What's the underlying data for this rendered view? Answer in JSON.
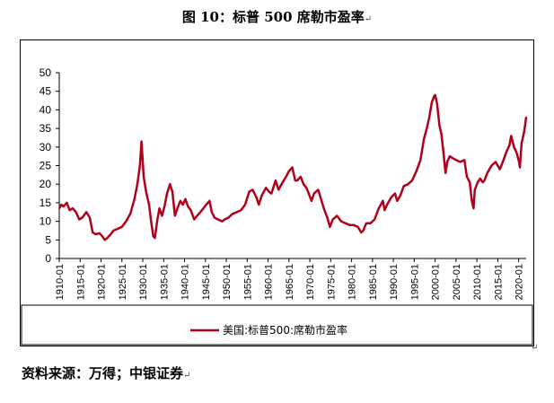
{
  "title": "图 10：标普 500 席勒市盈率",
  "source": "资料来源：万得；中银证券",
  "paragraph_mark": "↵",
  "chart_data": {
    "type": "line",
    "title": "图 10：标普 500 席勒市盈率",
    "xlabel": "",
    "ylabel": "",
    "ylim": [
      0,
      50
    ],
    "yticks": [
      0,
      5,
      10,
      15,
      20,
      25,
      30,
      35,
      40,
      45,
      50
    ],
    "xticks": [
      "1910-01",
      "1915-01",
      "1920-01",
      "1925-01",
      "1930-01",
      "1935-01",
      "1940-01",
      "1945-01",
      "1950-01",
      "1955-01",
      "1960-01",
      "1965-01",
      "1970-01",
      "1975-01",
      "1980-01",
      "1985-01",
      "1990-01",
      "1995-01",
      "2000-01",
      "2005-01",
      "2010-01",
      "2015-01",
      "2020-01"
    ],
    "xlim": [
      1910.0,
      2021.8
    ],
    "grid": false,
    "legend_placement": "bottom",
    "color": "#b0001a",
    "series": [
      {
        "name": "美国:标普500:席勒市盈率",
        "x": [
          1910.0,
          1910.5,
          1911.0,
          1911.8,
          1912.5,
          1913.2,
          1914.0,
          1914.8,
          1915.5,
          1916.5,
          1917.3,
          1918.0,
          1918.8,
          1919.6,
          1920.3,
          1920.9,
          1921.5,
          1922.3,
          1923.0,
          1924.0,
          1925.0,
          1926.0,
          1927.0,
          1928.0,
          1928.7,
          1929.3,
          1929.7,
          1930.2,
          1930.8,
          1931.5,
          1932.0,
          1932.5,
          1932.9,
          1933.5,
          1934.0,
          1934.6,
          1935.2,
          1935.8,
          1936.5,
          1937.1,
          1937.7,
          1938.3,
          1939.0,
          1939.6,
          1940.2,
          1940.8,
          1941.5,
          1942.3,
          1943.0,
          1943.8,
          1944.5,
          1945.2,
          1946.0,
          1946.5,
          1947.2,
          1948.0,
          1949.0,
          1949.6,
          1950.5,
          1951.5,
          1952.5,
          1953.5,
          1954.5,
          1955.5,
          1956.3,
          1957.2,
          1957.8,
          1958.5,
          1959.5,
          1960.2,
          1960.8,
          1961.8,
          1962.5,
          1963.5,
          1964.3,
          1965.0,
          1965.8,
          1966.5,
          1967.0,
          1967.8,
          1968.5,
          1969.2,
          1969.9,
          1970.4,
          1971.0,
          1972.0,
          1972.8,
          1973.5,
          1974.2,
          1974.8,
          1975.5,
          1976.5,
          1977.5,
          1978.5,
          1979.5,
          1980.5,
          1981.5,
          1982.3,
          1982.8,
          1983.5,
          1984.5,
          1985.5,
          1986.5,
          1987.5,
          1987.9,
          1988.5,
          1989.5,
          1990.4,
          1990.9,
          1991.7,
          1992.5,
          1993.5,
          1994.5,
          1995.5,
          1996.5,
          1997.3,
          1998.0,
          1998.6,
          1999.2,
          1999.7,
          2000.0,
          2000.5,
          2001.0,
          2001.5,
          2002.0,
          2002.5,
          2002.9,
          2003.5,
          2004.2,
          2005.0,
          2006.0,
          2007.0,
          2007.6,
          2008.3,
          2008.8,
          2009.2,
          2009.5,
          2010.2,
          2010.8,
          2011.4,
          2011.8,
          2012.5,
          2013.5,
          2014.5,
          2015.5,
          2016.2,
          2017.0,
          2017.8,
          2018.2,
          2018.9,
          2019.5,
          2020.1,
          2020.3,
          2020.7,
          2021.3,
          2021.8
        ],
        "values": [
          13.5,
          14.5,
          14.0,
          15.0,
          13.0,
          13.5,
          12.5,
          10.5,
          11.0,
          12.5,
          11.0,
          7.0,
          6.5,
          6.8,
          6.0,
          5.0,
          5.5,
          6.5,
          7.5,
          8.0,
          8.5,
          10.0,
          12.0,
          16.0,
          20.0,
          25.0,
          31.5,
          22.0,
          18.0,
          14.5,
          10.0,
          6.0,
          5.5,
          10.5,
          13.5,
          11.5,
          14.0,
          17.5,
          20.0,
          18.0,
          11.5,
          13.5,
          15.5,
          14.5,
          16.0,
          14.0,
          13.0,
          10.5,
          11.5,
          12.5,
          13.5,
          14.5,
          15.5,
          12.5,
          11.0,
          10.5,
          10.0,
          10.5,
          11.0,
          12.0,
          12.5,
          13.0,
          14.5,
          18.0,
          18.5,
          16.5,
          14.5,
          17.0,
          19.0,
          18.0,
          17.5,
          21.0,
          18.5,
          20.5,
          22.0,
          23.5,
          24.5,
          21.0,
          21.0,
          22.0,
          20.0,
          19.0,
          17.0,
          15.5,
          17.5,
          18.5,
          15.5,
          13.0,
          11.0,
          8.5,
          10.5,
          11.5,
          10.0,
          9.5,
          9.0,
          9.0,
          8.5,
          7.0,
          7.5,
          9.5,
          9.5,
          10.5,
          13.5,
          15.5,
          13.0,
          14.5,
          16.5,
          17.5,
          15.5,
          17.0,
          19.5,
          20.0,
          21.0,
          23.5,
          26.5,
          32.0,
          35.0,
          38.0,
          42.0,
          43.5,
          44.0,
          41.5,
          36.0,
          33.5,
          28.5,
          23.0,
          26.0,
          27.5,
          27.0,
          26.5,
          26.0,
          26.5,
          22.0,
          20.5,
          15.5,
          13.5,
          18.5,
          20.5,
          21.5,
          20.5,
          21.0,
          23.0,
          25.0,
          26.0,
          24.0,
          26.0,
          28.5,
          30.5,
          33.0,
          30.0,
          28.5,
          26.0,
          24.5,
          31.0,
          34.0,
          38.0
        ]
      }
    ]
  }
}
